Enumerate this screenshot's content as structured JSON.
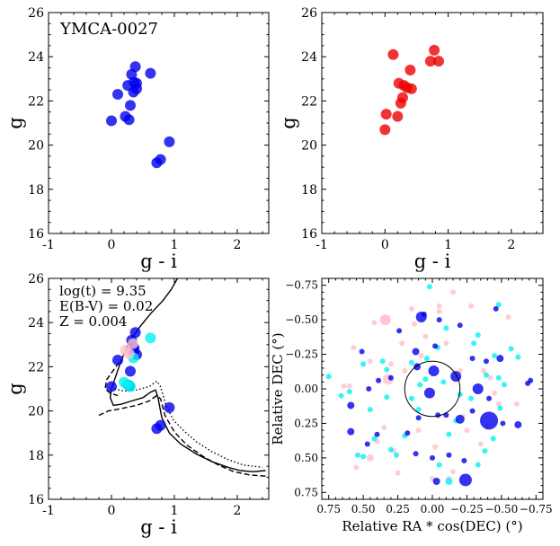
{
  "chart_data": [
    {
      "type": "scatter",
      "title": "YMCA-0027",
      "xlabel": "g - i",
      "ylabel": "g",
      "xlim": [
        -1,
        2.5
      ],
      "ylim": [
        26,
        16
      ],
      "xticks": [
        "-1",
        "0",
        "1",
        "2"
      ],
      "yticks": [
        "16",
        "18",
        "20",
        "22",
        "24",
        "26"
      ],
      "series": [
        {
          "name": "members",
          "color": "#0000ee",
          "x": [
            0.72,
            0.78,
            0.92,
            0.0,
            0.22,
            0.28,
            0.3,
            0.1,
            0.35,
            0.4,
            0.26,
            0.36,
            0.4,
            0.32,
            0.62,
            0.38
          ],
          "y": [
            19.2,
            19.35,
            20.15,
            21.1,
            21.3,
            21.15,
            21.8,
            22.3,
            22.4,
            22.55,
            22.7,
            22.85,
            22.8,
            23.2,
            23.25,
            23.55
          ]
        }
      ]
    },
    {
      "type": "scatter",
      "xlabel": "g - i",
      "ylabel": "g",
      "xlim": [
        -1,
        2.5
      ],
      "ylim": [
        26,
        16
      ],
      "xticks": [
        "-1",
        "0",
        "1",
        "2"
      ],
      "yticks": [
        "16",
        "18",
        "20",
        "22",
        "24",
        "26"
      ],
      "series": [
        {
          "name": "field",
          "color": "#ee0000",
          "x": [
            0.0,
            0.02,
            0.2,
            0.25,
            0.28,
            0.35,
            0.3,
            0.42,
            0.22,
            0.4,
            0.72,
            0.85,
            0.13,
            0.78
          ],
          "y": [
            20.7,
            21.4,
            21.3,
            21.9,
            22.15,
            22.6,
            22.7,
            22.55,
            22.8,
            23.4,
            23.8,
            23.8,
            24.1,
            24.3
          ]
        }
      ]
    },
    {
      "type": "line",
      "annotations": [
        "log(t) = 9.35",
        "E(B-V) = 0.02",
        "Z = 0.004"
      ],
      "xlabel": "g - i",
      "ylabel": "g",
      "xlim": [
        -1,
        2.5
      ],
      "ylim": [
        26,
        16
      ],
      "xticks": [
        "-1",
        "0",
        "1",
        "2"
      ],
      "yticks": [
        "16",
        "18",
        "20",
        "22",
        "24",
        "26"
      ],
      "series": [
        {
          "name": "isochrone-solid",
          "style": "solid",
          "x": [
            1.05,
            0.95,
            0.82,
            0.62,
            0.45,
            0.3,
            0.2,
            0.12,
            0.06,
            0.0,
            -0.02,
            0.03,
            0.15,
            0.32,
            0.5,
            0.62,
            0.7,
            0.74,
            0.8,
            0.92,
            1.1,
            1.35,
            1.6,
            1.85,
            2.05,
            2.25,
            2.45
          ],
          "y": [
            26.0,
            25.5,
            25.0,
            24.4,
            23.8,
            23.2,
            22.6,
            22.0,
            21.5,
            21.0,
            20.6,
            20.25,
            20.3,
            20.45,
            20.6,
            20.85,
            20.95,
            20.6,
            19.7,
            19.0,
            18.5,
            18.05,
            17.7,
            17.45,
            17.3,
            17.25,
            17.3
          ]
        },
        {
          "name": "isochrone-dashed",
          "style": "dashed",
          "x": [
            -0.2,
            -0.05,
            0.15,
            0.4,
            0.6,
            0.72,
            0.78,
            0.85,
            1.0,
            1.2,
            1.45,
            1.7,
            1.95,
            2.2,
            2.45
          ],
          "y": [
            19.8,
            20.0,
            20.1,
            20.25,
            20.45,
            20.7,
            20.55,
            19.8,
            19.05,
            18.45,
            17.95,
            17.55,
            17.25,
            17.1,
            17.05
          ]
        },
        {
          "name": "isochrone-dashed-lower",
          "style": "dashed",
          "x": [
            0.12,
            0.02,
            -0.08,
            -0.1,
            -0.02,
            0.1
          ],
          "y": [
            22.2,
            21.8,
            21.4,
            21.0,
            20.8,
            20.7
          ]
        },
        {
          "name": "isochrone-dotted",
          "style": "dotted",
          "x": [
            0.05,
            0.2,
            0.4,
            0.6,
            0.72,
            0.78,
            0.86,
            0.98,
            1.15,
            1.35,
            1.6,
            1.85,
            2.1,
            2.4
          ],
          "y": [
            21.0,
            20.9,
            20.95,
            21.1,
            21.35,
            21.1,
            20.3,
            19.6,
            19.1,
            18.6,
            18.15,
            17.8,
            17.55,
            17.45
          ]
        },
        {
          "name": "members",
          "color": "#0000ee",
          "type": "scatter",
          "x": [
            0.72,
            0.78,
            0.92,
            0.0,
            0.28,
            0.3,
            0.1,
            0.35,
            0.4,
            0.36,
            0.32,
            0.38
          ],
          "y": [
            19.2,
            19.35,
            20.15,
            21.1,
            21.15,
            21.8,
            22.3,
            22.7,
            22.55,
            22.85,
            23.2,
            23.55
          ]
        },
        {
          "name": "cyan-stars",
          "color": "#00f2f2",
          "type": "scatter",
          "x": [
            0.25,
            0.3,
            0.2,
            0.35,
            0.62
          ],
          "y": [
            21.2,
            21.1,
            21.3,
            22.4,
            23.3
          ]
        },
        {
          "name": "pink-stars",
          "color": "#ffc0cb",
          "type": "scatter",
          "x": [
            0.28,
            0.22,
            0.34
          ],
          "y": [
            22.6,
            22.75,
            23.05
          ]
        }
      ]
    },
    {
      "type": "scatter",
      "xlabel": "Relative RA * cos(DEC) (°)",
      "ylabel": "Relative DEC (°)",
      "xlim": [
        0.8,
        -0.8
      ],
      "ylim": [
        -0.8,
        0.8
      ],
      "xticks": [
        "0.75",
        "0.50",
        "0.25",
        "0.00",
        "−0.25",
        "−0.50",
        "−0.75"
      ],
      "yticks": [
        "0.75",
        "0.50",
        "0.25",
        "0.00",
        "−0.25",
        "−0.50",
        "−0.75"
      ],
      "circle_radius": 0.2,
      "series": [
        {
          "name": "blue",
          "color": "#0000ee",
          "x": [
            -0.03,
            -0.24,
            0.12,
            0.0,
            -0.12,
            -0.23,
            0.59,
            0.47,
            0.18,
            0.1,
            -0.04,
            -0.1,
            -0.2,
            -0.29,
            -0.41,
            -0.51,
            0.59,
            0.46,
            0.39,
            0.3,
            0.02,
            -0.01,
            -0.29,
            -0.33,
            -0.49,
            -0.62,
            -0.69,
            -0.71,
            0.51,
            0.12,
            -0.02,
            -0.39,
            0.08,
            0.06,
            0.24,
            -0.05,
            -0.2,
            0.11,
            -0.17,
            0.4,
            -0.46
          ],
          "x_": null,
          "y": [
            0.67,
            0.66,
            0.47,
            0.5,
            0.48,
            0.52,
            0.31,
            0.4,
            0.32,
            0.21,
            0.19,
            0.19,
            0.22,
            0.16,
            0.07,
            0.25,
            0.12,
            0.0,
            -0.06,
            -0.08,
            0.03,
            -0.13,
            -0.22,
            0.0,
            -0.22,
            0.26,
            -0.04,
            -0.06,
            -0.27,
            -0.27,
            -0.31,
            -0.2,
            -0.52,
            -0.54,
            -0.42,
            -0.5,
            -0.46,
            -0.16,
            -0.09,
            0.33,
            -0.58
          ],
          "size": [
            4,
            7,
            3,
            3,
            3,
            3,
            4,
            3,
            3,
            3,
            3,
            3,
            5,
            3,
            3,
            3,
            4,
            3,
            3,
            3,
            6,
            6,
            3,
            6,
            4,
            4,
            3,
            3,
            3,
            4,
            3,
            3,
            6,
            3,
            3,
            3,
            3,
            4,
            6,
            3,
            3
          ]
        },
        {
          "name": "cyan",
          "color": "#00f2f2",
          "x": [
            0.54,
            0.5,
            0.42,
            0.3,
            0.2,
            0.1,
            -0.05,
            -0.12,
            -0.17,
            -0.28,
            -0.38,
            -0.44,
            -0.49,
            -0.52,
            0.66,
            0.45,
            0.33,
            0.15,
            0.09,
            0.05,
            -0.08,
            -0.2,
            -0.33,
            -0.39,
            0.75,
            0.6,
            0.5,
            0.33,
            0.15,
            0.04,
            -0.04,
            -0.1,
            -0.3,
            -0.45,
            -0.62,
            -0.57,
            -0.48,
            0.36,
            -0.12,
            0.26,
            0.02,
            -0.48,
            -0.33
          ],
          "y": [
            0.48,
            0.49,
            0.36,
            0.44,
            0.34,
            0.15,
            0.55,
            0.33,
            0.23,
            0.07,
            0.45,
            0.36,
            0.14,
            -0.03,
            0.05,
            0.15,
            0.06,
            0.07,
            -0.03,
            -0.07,
            -0.05,
            0.04,
            0.55,
            -0.1,
            -0.09,
            0.02,
            -0.18,
            -0.14,
            -0.19,
            -0.22,
            -0.3,
            -0.44,
            -0.33,
            -0.24,
            -0.23,
            -0.29,
            -0.61,
            -0.2,
            0.67,
            0.48,
            -0.74,
            -0.08,
            -0.39
          ],
          "size": [
            3,
            3,
            3,
            3,
            3,
            3,
            3,
            3,
            3,
            3,
            3,
            3,
            3,
            3,
            3,
            3,
            3,
            3,
            3,
            3,
            3,
            3,
            3,
            3,
            3,
            3,
            3,
            3,
            3,
            3,
            3,
            3,
            3,
            3,
            3,
            3,
            3,
            3,
            4,
            3,
            3,
            3,
            3
          ]
        },
        {
          "name": "pink",
          "color": "#ffc0cb",
          "x": [
            0.55,
            0.4,
            0.35,
            0.25,
            0.1,
            -0.02,
            -0.15,
            -0.22,
            -0.35,
            -0.4,
            -0.48,
            0.64,
            0.6,
            0.45,
            0.3,
            0.2,
            0.08,
            -0.1,
            -0.2,
            -0.37,
            -0.45,
            -0.61,
            0.57,
            0.42,
            0.22,
            0.05,
            -0.05,
            -0.15,
            -0.28,
            -0.55,
            0.45,
            0.28,
            0.13,
            0.0,
            -0.12,
            -0.25,
            0.15,
            -0.05,
            -0.42,
            0.32
          ],
          "y": [
            0.57,
            0.38,
            0.28,
            0.61,
            0.3,
            0.42,
            0.6,
            0.2,
            0.4,
            0.27,
            0.11,
            -0.02,
            -0.02,
            -0.2,
            -0.18,
            -0.13,
            -0.24,
            -0.33,
            -0.13,
            -0.13,
            0.03,
            0.11,
            -0.3,
            -0.48,
            -0.33,
            -0.38,
            -0.56,
            -0.7,
            -0.6,
            -0.52,
            0.5,
            0.45,
            -0.47,
            0.65,
            0.65,
            0.3,
            -0.58,
            -0.6,
            -0.08,
            -0.07
          ],
          "size": [
            3,
            3,
            3,
            3,
            3,
            3,
            3,
            3,
            3,
            3,
            3,
            3,
            3,
            3,
            3,
            3,
            3,
            3,
            3,
            3,
            3,
            3,
            3,
            3,
            3,
            3,
            3,
            3,
            3,
            3,
            4,
            3,
            3,
            3,
            3,
            3,
            3,
            3,
            3,
            6
          ]
        }
      ]
    }
  ]
}
